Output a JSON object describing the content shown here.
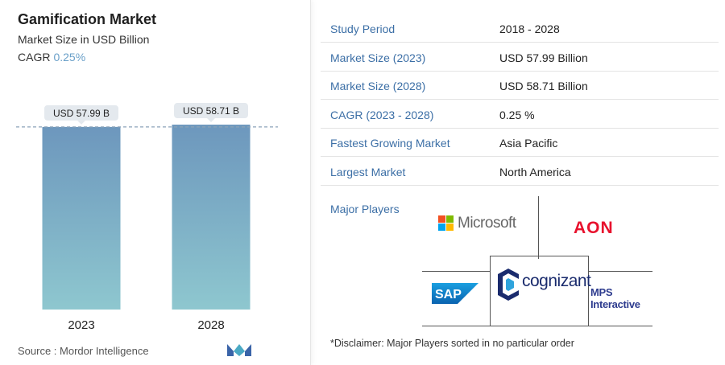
{
  "header": {
    "title": "Gamification Market",
    "subtitle": "Market Size in USD Billion",
    "cagr_label": "CAGR",
    "cagr_value": "0.25%"
  },
  "chart_data": {
    "type": "bar",
    "categories": [
      "2023",
      "2028"
    ],
    "values": [
      57.99,
      58.71
    ],
    "data_labels": [
      "USD 57.99 B",
      "USD 58.71 B"
    ],
    "title": "",
    "xlabel": "",
    "ylabel": "",
    "ylim": [
      0,
      60
    ],
    "colors": {
      "bar_top": "#6d97bd",
      "bar_bottom": "#8ec7cf",
      "label_bg": "#e4e9ee",
      "guide": "#8ca3b8"
    }
  },
  "footer": {
    "source": "Source :  Mordor Intelligence"
  },
  "stats": [
    {
      "label": "Study Period",
      "value": "2018 - 2028"
    },
    {
      "label": "Market Size (2023)",
      "value": "USD 57.99 Billion"
    },
    {
      "label": "Market Size (2028)",
      "value": "USD 58.71 Billion"
    },
    {
      "label": "CAGR (2023 - 2028)",
      "value": "0.25 %"
    },
    {
      "label": "Fastest Growing Market",
      "value": "Asia Pacific"
    },
    {
      "label": "Largest Market",
      "value": "North America"
    }
  ],
  "players": {
    "label": "Major Players",
    "logos": {
      "microsoft": "Microsoft",
      "aon": "AON",
      "sap": "SAP",
      "cognizant": "cognizant",
      "mps": "MPS Interactive"
    }
  },
  "disclaimer": "*Disclaimer: Major Players sorted in no particular order",
  "colors": {
    "accent": "#3c6fa6",
    "cagr": "#6aa0c9"
  }
}
